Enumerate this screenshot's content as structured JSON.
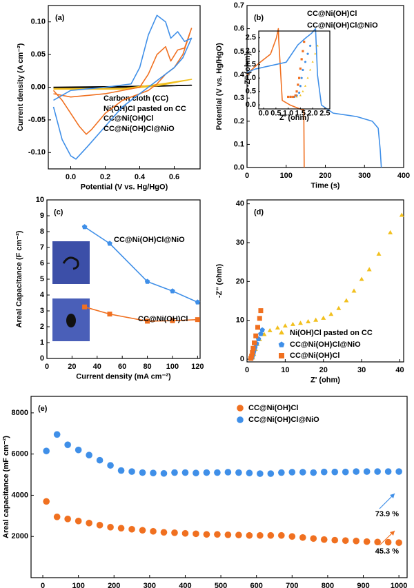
{
  "chart_data": [
    {
      "type": "line",
      "label": "(a)",
      "xlabel": "Potential (V vs. Hg/HgO)",
      "ylabel": "Current density (A cm⁻²)",
      "xlim": [
        -0.13,
        0.75
      ],
      "ylim": [
        -0.125,
        0.125
      ],
      "xticks": [
        {
          "value": 0,
          "label": "0.0"
        },
        {
          "value": 0.2,
          "label": "0.2"
        },
        {
          "value": 0.4,
          "label": "0.4"
        },
        {
          "value": 0.6,
          "label": "0.6"
        }
      ],
      "yticks": [
        {
          "value": -0.1,
          "label": "-0.10"
        },
        {
          "value": -0.05,
          "label": "-0.05"
        },
        {
          "value": 0,
          "label": "0.00"
        },
        {
          "value": 0.05,
          "label": "0.05"
        },
        {
          "value": 0.1,
          "label": "0.10"
        }
      ],
      "series": [
        {
          "name": "Carbon cloth (CC)",
          "color": "#000000",
          "x": [
            -0.1,
            0.3,
            0.7,
            0.3,
            -0.1
          ],
          "values": [
            -0.001,
            0,
            0.003,
            0.001,
            0
          ]
        },
        {
          "name": "Ni(OH)Cl pasted on CC",
          "color": "#f2c01e",
          "x": [
            -0.1,
            0.3,
            0.5,
            0.7,
            0.5,
            0.3,
            -0.1
          ],
          "values": [
            -0.003,
            -0.003,
            0.002,
            0.012,
            0.004,
            -0.002,
            -0.002
          ]
        },
        {
          "name": "CC@Ni(OH)Cl",
          "color": "#f07020",
          "x": [
            -0.1,
            0.0,
            0.2,
            0.4,
            0.45,
            0.5,
            0.55,
            0.58,
            0.62,
            0.66,
            0.7,
            0.65,
            0.6,
            0.55,
            0.5,
            0.45,
            0.3,
            0.2,
            0.12,
            0.09,
            0.05,
            0.0,
            -0.05,
            -0.1
          ],
          "values": [
            -0.01,
            -0.015,
            -0.01,
            0.0,
            0.02,
            0.05,
            0.062,
            0.04,
            0.057,
            0.06,
            0.09,
            0.05,
            0.03,
            0.02,
            0.005,
            -0.005,
            -0.02,
            -0.04,
            -0.065,
            -0.072,
            -0.06,
            -0.04,
            -0.02,
            -0.005
          ]
        },
        {
          "name": "CC@Ni(OH)Cl@NiO",
          "color": "#3f8fe8",
          "x": [
            -0.1,
            0.0,
            0.2,
            0.35,
            0.4,
            0.45,
            0.5,
            0.55,
            0.58,
            0.62,
            0.66,
            0.7,
            0.65,
            0.6,
            0.5,
            0.4,
            0.3,
            0.2,
            0.1,
            0.03,
            0.0,
            -0.05,
            -0.1
          ],
          "values": [
            -0.02,
            -0.005,
            0.0,
            0.005,
            0.03,
            0.08,
            0.11,
            0.1,
            0.075,
            0.085,
            0.07,
            0.075,
            0.045,
            0.03,
            0.01,
            -0.01,
            -0.03,
            -0.06,
            -0.09,
            -0.11,
            -0.105,
            -0.08,
            -0.03
          ]
        }
      ]
    },
    {
      "type": "line",
      "label": "(b)",
      "xlabel": "Time (s)",
      "ylabel": "Potential (V vs. Hg/HgO)",
      "xlim": [
        0,
        400
      ],
      "ylim": [
        0,
        0.7
      ],
      "xticks": [
        0,
        100,
        200,
        300,
        400
      ],
      "yticks": [
        {
          "value": 0,
          "label": "0.0"
        },
        {
          "value": 0.1,
          "label": "0.1"
        },
        {
          "value": 0.2,
          "label": "0.2"
        },
        {
          "value": 0.3,
          "label": "0.3"
        },
        {
          "value": 0.4,
          "label": "0.4"
        },
        {
          "value": 0.5,
          "label": "0.5"
        },
        {
          "value": 0.6,
          "label": "0.6"
        },
        {
          "value": 0.7,
          "label": "0.7"
        }
      ],
      "series": [
        {
          "name": "CC@Ni(OH)Cl",
          "color": "#f07020",
          "x": [
            0,
            10,
            30,
            60,
            75,
            80,
            81,
            90,
            110,
            140,
            145,
            146
          ],
          "values": [
            0.4,
            0.42,
            0.45,
            0.49,
            0.56,
            0.6,
            0.55,
            0.29,
            0.27,
            0.25,
            0.25,
            0
          ]
        },
        {
          "name": "CC@Ni(OH)Cl@NiO",
          "color": "#3f8fe8",
          "x": [
            0,
            20,
            60,
            100,
            130,
            150,
            165,
            175,
            176,
            180,
            190,
            220,
            280,
            320,
            335,
            340,
            343
          ],
          "values": [
            0.41,
            0.425,
            0.44,
            0.455,
            0.53,
            0.56,
            0.58,
            0.6,
            0.56,
            0.4,
            0.27,
            0.235,
            0.22,
            0.2,
            0.17,
            0.08,
            0
          ]
        }
      ]
    },
    {
      "type": "line",
      "label": "(c)",
      "xlabel": "Current density (mA cm⁻²)",
      "ylabel": "Areal Capacitance (F cm⁻²)",
      "xlim": [
        0,
        122
      ],
      "ylim": [
        0,
        10
      ],
      "xticks": [
        0,
        20,
        40,
        60,
        80,
        100,
        120
      ],
      "yticks": [
        0,
        1,
        2,
        3,
        4,
        5,
        6,
        7,
        8,
        9,
        10
      ],
      "x": [
        30,
        50,
        80,
        100,
        120
      ],
      "series": [
        {
          "name": "CC@Ni(OH)Cl@NiO",
          "color": "#3f8fe8",
          "marker": "pentagon",
          "values": [
            8.3,
            7.25,
            4.85,
            4.25,
            3.55
          ]
        },
        {
          "name": "CC@Ni(OH)Cl",
          "color": "#f07020",
          "marker": "square",
          "values": [
            3.25,
            2.8,
            2.35,
            2.38,
            2.45
          ]
        }
      ]
    },
    {
      "type": "scatter",
      "label": "(d)",
      "xlabel": "Z' (ohm)",
      "ylabel": "-Z'' (ohm)",
      "xlim": [
        0,
        41
      ],
      "ylim": [
        -0.7,
        41
      ],
      "xticks": [
        0,
        10,
        20,
        30,
        40
      ],
      "yticks": [
        0,
        10,
        20,
        30,
        40
      ],
      "series": [
        {
          "name": "Ni(OH)Cl pasted on CC",
          "color": "#f2c01e",
          "marker": "triangle",
          "x": [
            1.5,
            1.8,
            2.2,
            2.7,
            3.3,
            4.5,
            6,
            8,
            10,
            12,
            14,
            16,
            18,
            20,
            22,
            24,
            26,
            28,
            30,
            32,
            34.5,
            37.5,
            40.5
          ],
          "values": [
            0.3,
            1.2,
            2.5,
            3.8,
            5,
            6.3,
            7.3,
            8,
            8.5,
            8.9,
            9.2,
            9.6,
            10,
            10.5,
            11.5,
            13,
            15,
            17.5,
            20.5,
            23,
            27,
            32.5,
            37
          ]
        },
        {
          "name": "CC@Ni(OH)Cl@NiO",
          "color": "#3f8fe8",
          "marker": "pentagon",
          "x": [
            1.2,
            1.4,
            1.6,
            1.8,
            2.1,
            2.5,
            3,
            3.6,
            4
          ],
          "values": [
            0.2,
            0.6,
            1.3,
            2,
            3,
            4,
            5.2,
            6.5,
            7.5
          ]
        },
        {
          "name": "CC@Ni(OH)Cl",
          "color": "#f07020",
          "marker": "square",
          "x": [
            1.0,
            1.2,
            1.4,
            1.6,
            1.9,
            2.3,
            2.8,
            3.3,
            3.6
          ],
          "values": [
            0.2,
            0.8,
            1.7,
            2.8,
            4.2,
            6,
            8.2,
            10.5,
            12.5
          ]
        }
      ]
    },
    {
      "type": "scatter",
      "label": "(e)",
      "xlabel": "Cycle number",
      "ylabel": "Areal capacitance (mF cm⁻²)",
      "xlim": [
        -33,
        1023
      ],
      "ylim": [
        0,
        8800
      ],
      "xticks": [
        0,
        100,
        200,
        300,
        400,
        500,
        600,
        700,
        800,
        900,
        1000
      ],
      "yticks": [
        2000,
        4000,
        6000,
        8000
      ],
      "x": [
        10,
        40,
        70,
        100,
        130,
        160,
        190,
        220,
        250,
        280,
        310,
        340,
        370,
        400,
        430,
        460,
        490,
        520,
        550,
        580,
        610,
        640,
        670,
        700,
        730,
        760,
        790,
        820,
        850,
        880,
        910,
        940,
        970,
        1000
      ],
      "series": [
        {
          "name": "CC@Ni(OH)Cl",
          "color": "#f07020",
          "marker": "circle",
          "values": [
            3700,
            2950,
            2850,
            2750,
            2650,
            2550,
            2450,
            2400,
            2350,
            2300,
            2250,
            2200,
            2180,
            2150,
            2130,
            2100,
            2100,
            2080,
            2070,
            2050,
            2050,
            2050,
            2050,
            2000,
            1950,
            1900,
            1850,
            1820,
            1800,
            1780,
            1750,
            1730,
            1720,
            1700
          ]
        },
        {
          "name": "CC@Ni(OH)Cl@NiO",
          "color": "#3f8fe8",
          "marker": "circle",
          "values": [
            6150,
            6950,
            6450,
            6200,
            5950,
            5700,
            5450,
            5200,
            5150,
            5100,
            5080,
            5060,
            5100,
            5100,
            5080,
            5100,
            5100,
            5120,
            5100,
            5080,
            5050,
            5050,
            5100,
            5120,
            5120,
            5100,
            5130,
            5130,
            5130,
            5150,
            5150,
            5150,
            5150,
            5150
          ]
        }
      ],
      "annotations": [
        {
          "text": "73.9 %",
          "color": "#3f8fe8"
        },
        {
          "text": "45.3 %",
          "color": "#f07020"
        }
      ]
    },
    {
      "type": "scatter",
      "xlabel": "Z' (ohm)",
      "ylabel": "-Z'' (ohm)",
      "xlim": [
        -0.2,
        2.7
      ],
      "ylim": [
        -0.15,
        2.75
      ],
      "xticks": [
        {
          "value": 0,
          "label": "0.0"
        },
        {
          "value": 0.5,
          "label": "0.5"
        },
        {
          "value": 1,
          "label": "1.0"
        },
        {
          "value": 1.5,
          "label": "1.5"
        },
        {
          "value": 2,
          "label": "2.0"
        },
        {
          "value": 2.5,
          "label": "2.5"
        }
      ],
      "yticks": [
        {
          "value": 0,
          "label": "0.0"
        },
        {
          "value": 0.5,
          "label": "0.5"
        },
        {
          "value": 1,
          "label": "1.0"
        },
        {
          "value": 1.5,
          "label": "1.5"
        },
        {
          "value": 2,
          "label": "2.0"
        },
        {
          "value": 2.5,
          "label": "2.5"
        }
      ],
      "series": [
        {
          "color": "#f2c01e",
          "marker": "triangle",
          "x": [
            1.2,
            1.35,
            1.5,
            1.6,
            1.7,
            1.8,
            1.9,
            2.0,
            2.1,
            2.2
          ],
          "values": [
            0.3,
            0.3,
            0.35,
            0.5,
            0.7,
            1.0,
            1.3,
            1.6,
            1.9,
            2.2
          ]
        },
        {
          "color": "#3f8fe8",
          "marker": "pentagon",
          "x": [
            1.1,
            1.25,
            1.35,
            1.45,
            1.5,
            1.55,
            1.6,
            1.7,
            1.8,
            1.9
          ],
          "values": [
            0.3,
            0.3,
            0.35,
            0.45,
            0.7,
            1.0,
            1.3,
            1.6,
            1.9,
            2.2
          ]
        },
        {
          "color": "#f07020",
          "marker": "square",
          "x": [
            1.0,
            1.1,
            1.2,
            1.3,
            1.35,
            1.4,
            1.45,
            1.5,
            1.55,
            1.6,
            1.65
          ],
          "values": [
            0.3,
            0.3,
            0.3,
            0.35,
            0.5,
            0.75,
            1.0,
            1.35,
            1.7,
            2.0,
            2.35
          ]
        }
      ]
    }
  ]
}
